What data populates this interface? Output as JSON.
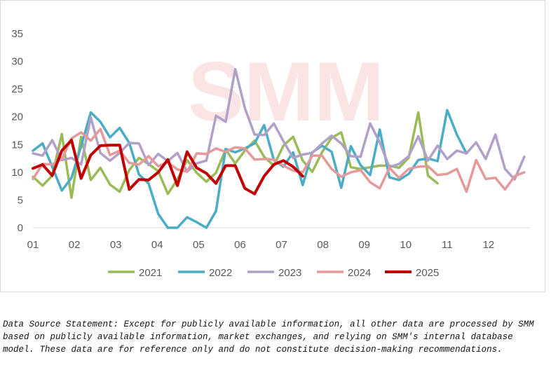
{
  "chart_data": {
    "type": "line",
    "watermark": "SMM",
    "ylim": [
      0,
      35
    ],
    "yticks": [
      0,
      5,
      10,
      15,
      20,
      25,
      30,
      35
    ],
    "xlim": [
      1,
      13.0
    ],
    "xticks": [
      {
        "label": "01",
        "x": 1
      },
      {
        "label": "02",
        "x": 2
      },
      {
        "label": "03",
        "x": 3
      },
      {
        "label": "04",
        "x": 4
      },
      {
        "label": "05",
        "x": 5
      },
      {
        "label": "06",
        "x": 6
      },
      {
        "label": "07",
        "x": 7
      },
      {
        "label": "08",
        "x": 8
      },
      {
        "label": "09",
        "x": 9
      },
      {
        "label": "10",
        "x": 10
      },
      {
        "label": "11",
        "x": 11
      },
      {
        "label": "12",
        "x": 12
      }
    ],
    "grid": false,
    "legend_position": "bottom",
    "series": [
      {
        "name": "2021",
        "color": "#9bbb59",
        "x_start": 1,
        "x_step": 0.2326,
        "values": [
          9.2,
          7.6,
          9.4,
          16.9,
          5.4,
          16.4,
          8.6,
          10.8,
          7.8,
          6.5,
          10.4,
          12.6,
          11.5,
          10.2,
          6.1,
          8.7,
          12.2,
          9.9,
          8.3,
          9.9,
          14.1,
          11.6,
          13.9,
          15.7,
          12.8,
          11.2,
          14.8,
          16.4,
          12.1,
          10.1,
          13.6,
          16.2,
          17.2,
          10.9,
          10.6,
          10.9,
          11.2,
          11.2,
          10.8,
          12.6,
          20.8,
          9.4,
          8.0
        ]
      },
      {
        "name": "2022",
        "color": "#4bacc6",
        "x_start": 1,
        "x_step": 0.2326,
        "values": [
          13.9,
          15.2,
          11.0,
          6.7,
          9.0,
          14.7,
          20.8,
          19.1,
          16.3,
          18.0,
          15.3,
          9.6,
          8.0,
          2.5,
          0.0,
          0.0,
          1.9,
          1.0,
          0.0,
          3.0,
          14.2,
          13.6,
          14.3,
          15.2,
          18.5,
          12.2,
          11.0,
          13.6,
          7.7,
          13.6,
          14.8,
          13.7,
          7.2,
          14.7,
          11.3,
          9.5,
          17.7,
          9.1,
          8.6,
          9.7,
          12.2,
          12.5,
          12.0,
          21.2,
          16.8,
          13.4
        ]
      },
      {
        "name": "2023",
        "color": "#b1a0c7",
        "x_start": 1,
        "x_step": 0.2326,
        "values": [
          13.4,
          13.0,
          15.8,
          12.2,
          12.6,
          11.4,
          19.9,
          13.5,
          12.1,
          13.5,
          15.3,
          15.2,
          11.3,
          13.3,
          12.0,
          13.5,
          10.1,
          11.6,
          12.1,
          20.2,
          19.1,
          28.6,
          21.6,
          16.8,
          16.7,
          18.8,
          15.6,
          12.6,
          13.2,
          13.5,
          15.2,
          16.6,
          15.2,
          12.9,
          12.8,
          18.8,
          15.4,
          10.9,
          11.5,
          12.9,
          16.5,
          12.1,
          14.8,
          12.4,
          13.9,
          13.4,
          15.4,
          12.4,
          16.8,
          10.6,
          8.7,
          12.8
        ]
      },
      {
        "name": "2024",
        "color": "#e6999a",
        "x_start": 1,
        "x_step": 0.2326,
        "values": [
          8.8,
          11.5,
          11.4,
          12.4,
          16.1,
          17.2,
          15.7,
          17.8,
          13.1,
          13.9,
          11.7,
          11.4,
          12.9,
          11.1,
          11.8,
          10.5,
          10.1,
          13.4,
          13.3,
          14.3,
          13.7,
          14.5,
          14.3,
          12.3,
          12.4,
          12.3,
          11.2,
          10.3,
          10.0,
          13.0,
          13.0,
          10.6,
          9.2,
          10.0,
          10.4,
          8.2,
          7.1,
          10.8,
          9.0,
          10.6,
          11.0,
          11.1,
          9.5,
          9.7,
          10.6,
          6.5,
          12.2,
          8.8,
          9.0,
          6.9,
          9.3,
          10.0
        ]
      },
      {
        "name": "2025",
        "color": "#c00000",
        "x_start": 1,
        "x_step": 0.2326,
        "values": [
          10.7,
          11.4,
          9.4,
          13.9,
          15.8,
          8.9,
          13.1,
          14.8,
          14.9,
          14.9,
          6.9,
          8.7,
          8.6,
          10.0,
          12.3,
          7.6,
          13.7,
          10.8,
          9.8,
          8.0,
          11.2,
          11.2,
          7.1,
          6.1,
          9.3,
          11.4,
          12.1,
          11.0,
          9.3
        ]
      }
    ]
  },
  "statement": "Data Source Statement: Except for publicly available information, all other data are processed by SMM based on publicly available information, market exchanges, and relying on SMM's internal database model. These data are for reference only and do not constitute decision-making recommendations."
}
